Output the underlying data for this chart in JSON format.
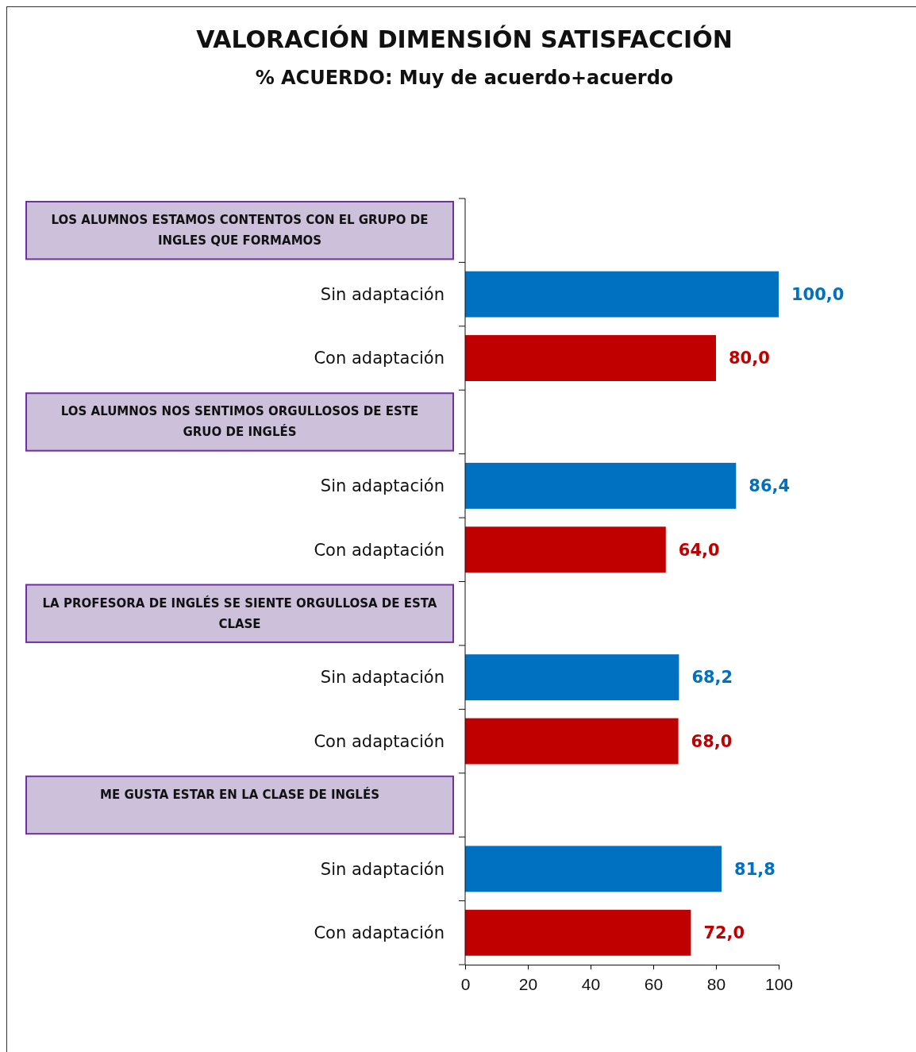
{
  "chart_data": {
    "type": "bar",
    "orientation": "horizontal",
    "title": "VALORACIÓN DIMENSIÓN SATISFACCIÓN",
    "subtitle": "% ACUERDO: Muy de acuerdo+acuerdo",
    "categories": [
      null,
      "Sin adaptación",
      "Con adaptación",
      null,
      "Sin adaptación",
      "Con adaptación",
      null,
      "Sin adaptación",
      "Con adaptación",
      null,
      "Sin adaptación",
      "Con adaptación"
    ],
    "annotations": [
      "LOS ALUMNOS ESTAMOS CONTENTOS CON EL GRUPO DE INGLES QUE FORMAMOS",
      "LOS ALUMNOS NOS SENTIMOS ORGULLOSOS DE ESTE GRUO DE INGLÉS",
      "LA PROFESORA DE INGLÉS SE SIENTE ORGULLOSA DE ESTA CLASE",
      "ME GUSTA ESTAR EN LA CLASE DE INGLÉS"
    ],
    "values": [
      null,
      100.0,
      80.0,
      null,
      86.4,
      64.0,
      null,
      68.2,
      68.0,
      null,
      81.8,
      72.0
    ],
    "colors": [
      null,
      "#0070c0",
      "#c00000",
      null,
      "#0070c0",
      "#c00000",
      null,
      "#0070c0",
      "#c00000",
      null,
      "#0070c0",
      "#c00000"
    ],
    "value_labels": [
      null,
      "100,0",
      "80,0",
      null,
      "86,4",
      "64,0",
      null,
      "68,2",
      "68,0",
      null,
      "81,8",
      "72,0"
    ],
    "xlim": [
      0,
      100
    ],
    "xticks": [
      0,
      20,
      40,
      60,
      80,
      100
    ],
    "grid": false
  }
}
